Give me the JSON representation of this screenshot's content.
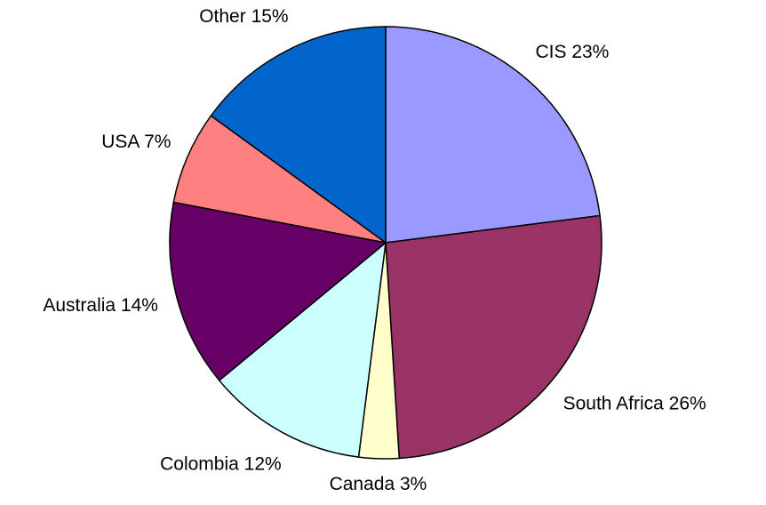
{
  "chart_data": {
    "type": "pie",
    "categories": [
      "CIS",
      "South Africa",
      "Canada",
      "Colombia",
      "Australia",
      "USA",
      "Other"
    ],
    "values": [
      23,
      26,
      3,
      12,
      14,
      7,
      15
    ],
    "value_labels": [
      "23%",
      "26%",
      "3%",
      "12%",
      "14%",
      "7%",
      "15%"
    ],
    "colors": [
      "#9999ff",
      "#993366",
      "#ffffcc",
      "#ccffff",
      "#660066",
      "#ff8080",
      "#0066cc"
    ]
  }
}
